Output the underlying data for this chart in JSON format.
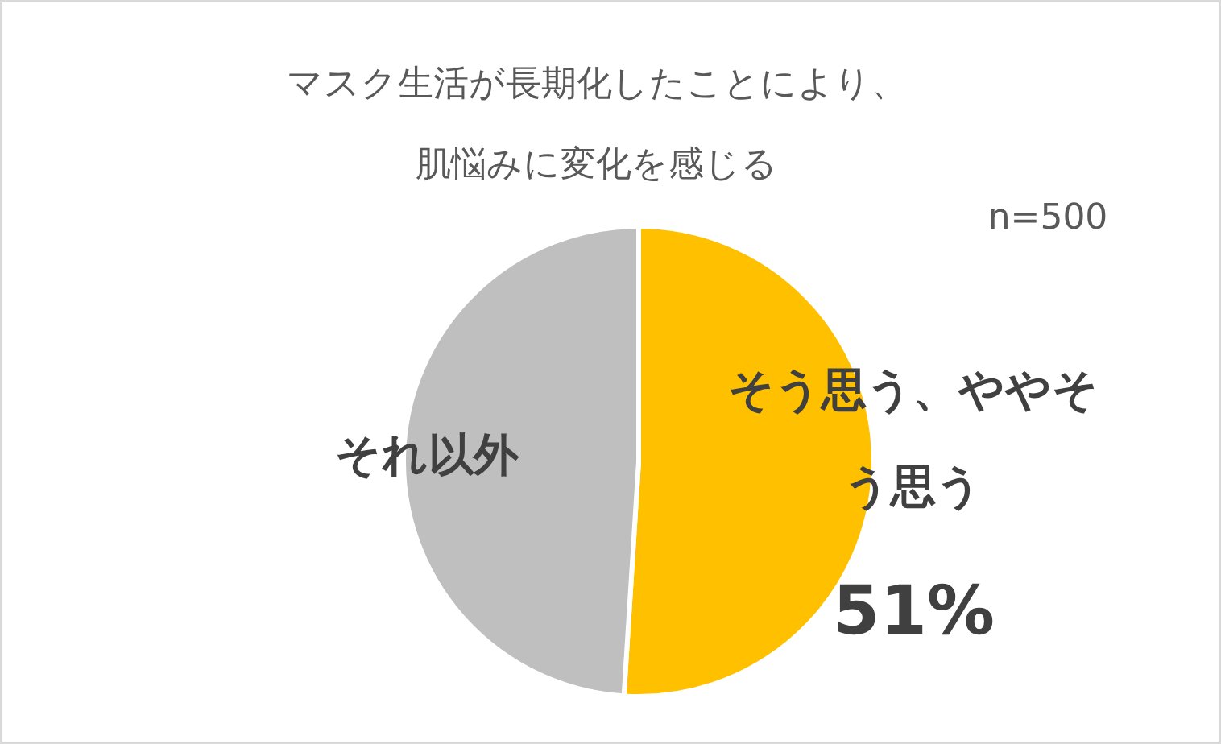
{
  "chart_data": {
    "type": "pie",
    "title": "マスク生活が長期化したことにより、肌悩みに変化を感じる",
    "categories": [
      "そう思う、ややそう思う",
      "それ以外"
    ],
    "values": [
      51,
      49
    ],
    "colors": [
      "#ffc000",
      "#bfbfbf"
    ],
    "value_labels": [
      "51%",
      null
    ],
    "annotations": [
      "n=500"
    ]
  }
}
